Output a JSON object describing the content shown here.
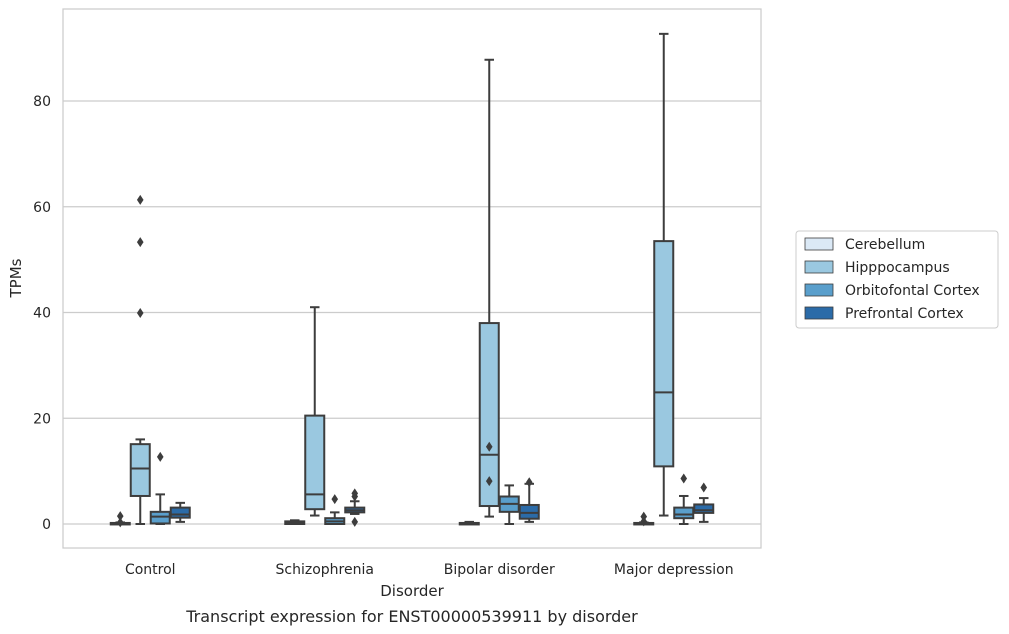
{
  "chart_data": {
    "type": "box",
    "caption": "Transcript expression for ENST00000539911 by disorder",
    "xlabel": "Disorder",
    "ylabel": "TPMs",
    "ylim": [
      -4.5,
      97
    ],
    "yticks": [
      0,
      20,
      40,
      60,
      80
    ],
    "grid": true,
    "legend_position": "right",
    "categories": [
      "Control",
      "Schizophrenia",
      "Bipolar disorder",
      "Major depression"
    ],
    "series": [
      {
        "name": "Cerebellum",
        "color": "#dbe9f6",
        "boxes": [
          {
            "whislo": 0,
            "q1": 0,
            "med": 0.1,
            "q3": 0.2,
            "whishi": 0.3,
            "fliers": [
              0.3,
              1.5
            ]
          },
          {
            "whislo": 0,
            "q1": 0,
            "med": 0.2,
            "q3": 0.5,
            "whishi": 0.7,
            "fliers": []
          },
          {
            "whislo": 0,
            "q1": 0,
            "med": 0.1,
            "q3": 0.2,
            "whishi": 0.4,
            "fliers": []
          },
          {
            "whislo": 0,
            "q1": 0,
            "med": 0.1,
            "q3": 0.2,
            "whishi": 0.3,
            "fliers": [
              0.5,
              1.4
            ]
          }
        ]
      },
      {
        "name": "Hipppocampus",
        "color": "#9ac8e0",
        "boxes": [
          {
            "whislo": 0,
            "q1": 5.3,
            "med": 10.5,
            "q3": 15.1,
            "whishi": 16,
            "fliers": [
              39.9,
              53.3,
              61.3
            ]
          },
          {
            "whislo": 1.6,
            "q1": 2.8,
            "med": 5.6,
            "q3": 20.5,
            "whishi": 41,
            "fliers": []
          },
          {
            "whislo": 1.4,
            "q1": 3.4,
            "med": 13.1,
            "q3": 38,
            "whishi": 87.8,
            "fliers": [
              8.1,
              14.6
            ]
          },
          {
            "whislo": 1.6,
            "q1": 10.9,
            "med": 24.9,
            "q3": 53.5,
            "whishi": 92.7,
            "fliers": []
          }
        ]
      },
      {
        "name": "Orbitofontal Cortex",
        "color": "#5a9fcc",
        "boxes": [
          {
            "whislo": 0,
            "q1": 0.1,
            "med": 1.4,
            "q3": 2.3,
            "whishi": 5.6,
            "fliers": [
              12.7
            ]
          },
          {
            "whislo": 0,
            "q1": 0,
            "med": 0.5,
            "q3": 1.1,
            "whishi": 2.2,
            "fliers": [
              4.7
            ]
          },
          {
            "whislo": 0,
            "q1": 2.3,
            "med": 3.8,
            "q3": 5.2,
            "whishi": 7.3,
            "fliers": []
          },
          {
            "whislo": 0,
            "q1": 1.1,
            "med": 1.8,
            "q3": 3.1,
            "whishi": 5.3,
            "fliers": [
              8.6
            ]
          }
        ]
      },
      {
        "name": "Prefrontal Cortex",
        "color": "#2b6ba8",
        "boxes": [
          {
            "whislo": 0.4,
            "q1": 1.2,
            "med": 1.8,
            "q3": 3.1,
            "whishi": 4,
            "fliers": []
          },
          {
            "whislo": 1.9,
            "q1": 2.2,
            "med": 2.6,
            "q3": 3.1,
            "whishi": 4.3,
            "fliers": [
              0.4,
              5.2,
              5.8
            ]
          },
          {
            "whislo": 0.4,
            "q1": 1,
            "med": 2.1,
            "q3": 3.6,
            "whishi": 7.6,
            "fliers": [
              7.9
            ]
          },
          {
            "whislo": 0.4,
            "q1": 2.1,
            "med": 2.6,
            "q3": 3.7,
            "whishi": 4.9,
            "fliers": [
              6.9
            ]
          }
        ]
      }
    ]
  }
}
